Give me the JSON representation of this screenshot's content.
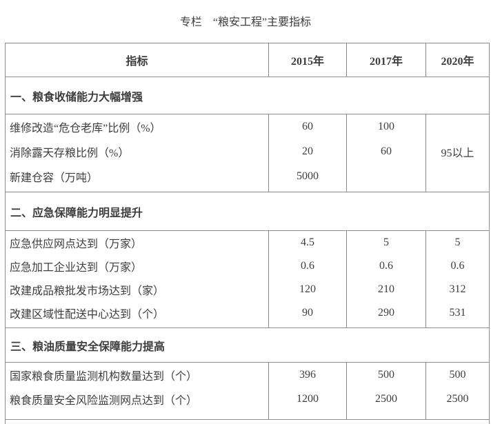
{
  "page": {
    "title": "专栏　“粮安工程”主要指标"
  },
  "colors": {
    "text": "#3d3d3d",
    "border": "#8c8c8c",
    "background": "#ffffff"
  },
  "table": {
    "columns": [
      "指标",
      "2015年",
      "2017年",
      "2020年"
    ],
    "sections": [
      {
        "heading": "一、粮食收储能力大幅增强",
        "rows": [
          {
            "label": "维修改造“危仓老库”比例（%）",
            "values": [
              "60",
              "100",
              ""
            ]
          },
          {
            "label": "消除露天存粮比例（%）",
            "values": [
              "20",
              "60",
              "95以上"
            ]
          },
          {
            "label": "新建仓容（万吨）",
            "values": [
              "5000",
              "",
              ""
            ]
          }
        ]
      },
      {
        "heading": "二、应急保障能力明显提升",
        "rows": [
          {
            "label": "应急供应网点达到（万家）",
            "values": [
              "4.5",
              "5",
              "5"
            ]
          },
          {
            "label": "应急加工企业达到（万家）",
            "values": [
              "0.6",
              "0.6",
              "0.6"
            ]
          },
          {
            "label": "改建成品粮批发市场达到（家）",
            "values": [
              "120",
              "210",
              "312"
            ]
          },
          {
            "label": "改建区域性配送中心达到（个）",
            "values": [
              "90",
              "290",
              "531"
            ]
          }
        ]
      },
      {
        "heading": "三、粮油质量安全保障能力提高",
        "rows": [
          {
            "label": "国家粮食质量监测机构数量达到（个）",
            "values": [
              "396",
              "500",
              "500"
            ]
          },
          {
            "label": "粮食质量安全风险监测网点达到（个）",
            "values": [
              "1200",
              "2500",
              "2500"
            ]
          }
        ]
      }
    ]
  }
}
